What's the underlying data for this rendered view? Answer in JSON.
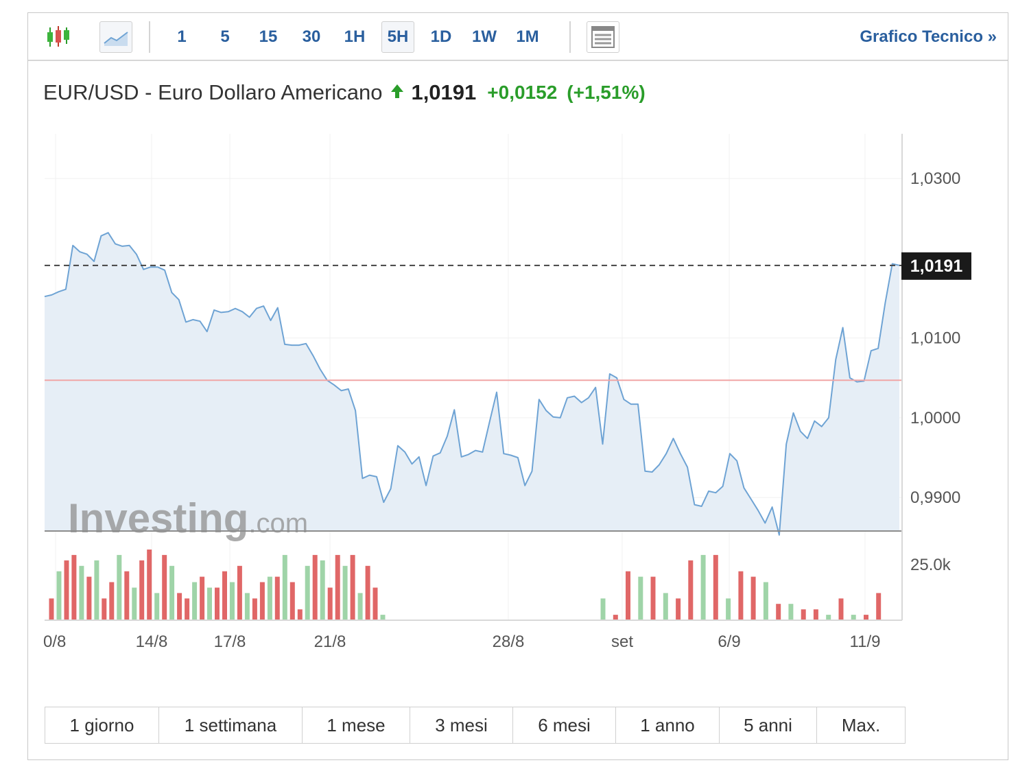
{
  "toolbar": {
    "timeframes": [
      "1",
      "5",
      "15",
      "30",
      "1H",
      "5H",
      "1D",
      "1W",
      "1M"
    ],
    "active_timeframe": "5H",
    "technical_link": "Grafico Tecnico »"
  },
  "quote": {
    "name": "EUR/USD - Euro Dollaro Americano",
    "price": "1,0191",
    "change": "+0,0152",
    "change_pct": "(+1,51%)",
    "direction": "up"
  },
  "watermark": {
    "brand": "Investing",
    "suffix": ".com"
  },
  "range_buttons": [
    "1 giorno",
    "1 settimana",
    "1 mese",
    "3 mesi",
    "6 mesi",
    "1 anno",
    "5 anni",
    "Max."
  ],
  "colors": {
    "line": "#6ea3d4",
    "area": "#e6eef6",
    "volume_up": "#9fd4a8",
    "volume_down": "#e06767",
    "reference_line": "#f1a5a5",
    "link": "#2a5f9e",
    "positive": "#2a9d2a",
    "price_tag_bg": "#1a1a1a"
  },
  "chart_data": {
    "type": "line",
    "series": [
      {
        "values": [
          1.0152,
          1.0154,
          1.0158,
          1.0161,
          1.0216,
          1.0208,
          1.0205,
          1.0196,
          1.0228,
          1.0232,
          1.0218,
          1.0215,
          1.0216,
          1.0205,
          1.0186,
          1.0189,
          1.0189,
          1.0185,
          1.0157,
          1.0148,
          1.012,
          1.0123,
          1.0121,
          1.0108,
          1.0135,
          1.0132,
          1.0133,
          1.0137,
          1.0133,
          1.0126,
          1.0137,
          1.014,
          1.0122,
          1.0138,
          1.0092,
          1.0091,
          1.0091,
          1.0093,
          1.0078,
          1.0061,
          1.0047,
          1.0041,
          1.0034,
          1.0036,
          1.0009,
          0.9924,
          0.9928,
          0.9926,
          0.9894,
          0.9911,
          0.9965,
          0.9957,
          0.9942,
          0.9951,
          0.9915,
          0.9952,
          0.9956,
          0.9977,
          1.001,
          0.9951,
          0.9954,
          0.9959,
          0.9957,
          0.9995,
          1.0032,
          0.9955,
          0.9953,
          0.995,
          0.9915,
          0.9933,
          1.0023,
          1.0009,
          1.0001,
          1.0,
          1.0025,
          1.0027,
          1.0019,
          1.0025,
          1.0038,
          0.9967,
          1.0055,
          1.005,
          1.0023,
          1.0017,
          1.0017,
          0.9933,
          0.9932,
          0.9941,
          0.9955,
          0.9974,
          0.9955,
          0.9938,
          0.9891,
          0.9889,
          0.9908,
          0.9906,
          0.9914,
          0.9955,
          0.9946,
          0.9912,
          0.9898,
          0.9884,
          0.9868,
          0.9888,
          0.9853,
          0.9967,
          1.0006,
          0.9983,
          0.9974,
          0.9996,
          0.9989,
          1.0,
          1.0073,
          1.0113,
          1.005,
          1.0045,
          1.0046,
          1.0084,
          1.0087,
          1.0144,
          1.0193,
          1.0191
        ]
      }
    ],
    "volumes": [
      4,
      9,
      11,
      12,
      10,
      8,
      11,
      4,
      7,
      12,
      9,
      6,
      11,
      13,
      5,
      12,
      10,
      5,
      4,
      7,
      8,
      6,
      6,
      9,
      7,
      10,
      5,
      4,
      7,
      8,
      8,
      12,
      7,
      2,
      10,
      12,
      11,
      6,
      12,
      10,
      12,
      5,
      10,
      6,
      1,
      0,
      4,
      1,
      9,
      8,
      8,
      5,
      4,
      11,
      12,
      12,
      4,
      9,
      8,
      7,
      3,
      3,
      2,
      2,
      1,
      4,
      1,
      1,
      5
    ],
    "price_label": "1,0191",
    "reference_value": 1.0047,
    "y_ticks": [
      "1,0300",
      "1,0100",
      "1,0000",
      "0,9900"
    ],
    "y_tick_values": [
      1.03,
      1.01,
      1.0,
      0.99
    ],
    "ylim": [
      0.9858,
      1.0356
    ],
    "volume_label": "25.0k",
    "x_ticks": [
      "0/8",
      "14/8",
      "17/8",
      "21/8",
      "28/8",
      "set",
      "6/9",
      "11/9"
    ],
    "grid": true
  }
}
